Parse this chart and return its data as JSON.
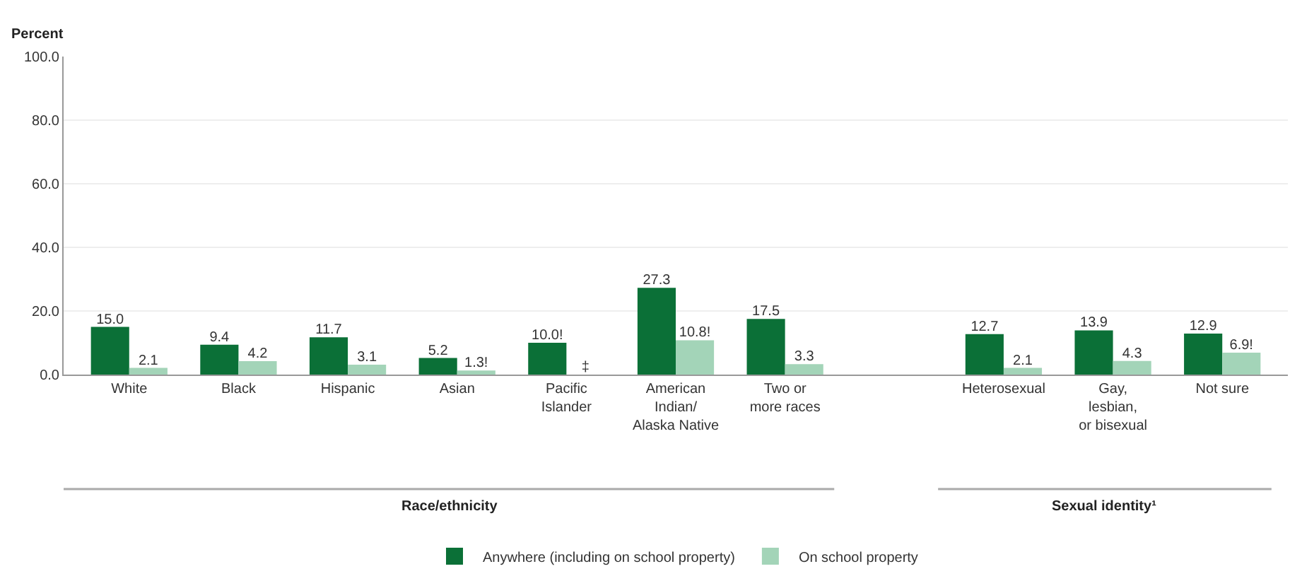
{
  "chart_data": {
    "type": "bar",
    "ylabel": "Percent",
    "categories": [
      "White",
      "Black",
      "Hispanic",
      "Asian",
      "Pacific\nIslander",
      "American\nIndian/\nAlaska Native",
      "Two or\nmore races",
      null,
      "Heterosexual",
      "Gay,\nlesbian,\nor bisexual",
      "Not sure"
    ],
    "series": [
      {
        "name": "Anywhere (including on school property)",
        "color": "#0b7037",
        "values": [
          15.0,
          9.4,
          11.7,
          5.2,
          10.0,
          27.3,
          17.5,
          null,
          12.7,
          13.9,
          12.9
        ],
        "value_labels": [
          "15.0",
          "9.4",
          "11.7",
          "5.2",
          "10.0!",
          "27.3",
          "17.5",
          null,
          "12.7",
          "13.9",
          "12.9"
        ]
      },
      {
        "name": "On school property",
        "color": "#a3d4b8",
        "values": [
          2.1,
          4.2,
          3.1,
          1.3,
          null,
          10.8,
          3.3,
          null,
          2.1,
          4.3,
          6.9
        ],
        "value_labels": [
          "2.1",
          "4.2",
          "3.1",
          "1.3!",
          "‡",
          "10.8!",
          "3.3",
          null,
          "2.1",
          "4.3",
          "6.9!"
        ]
      }
    ],
    "ylim": [
      0,
      100
    ],
    "yticks": [
      "0.0",
      "20.0",
      "40.0",
      "60.0",
      "80.0",
      "100.0"
    ],
    "grid": "y",
    "legend": "bottom",
    "annotations": [
      "Race/ethnicity",
      "Sexual identity¹"
    ]
  }
}
